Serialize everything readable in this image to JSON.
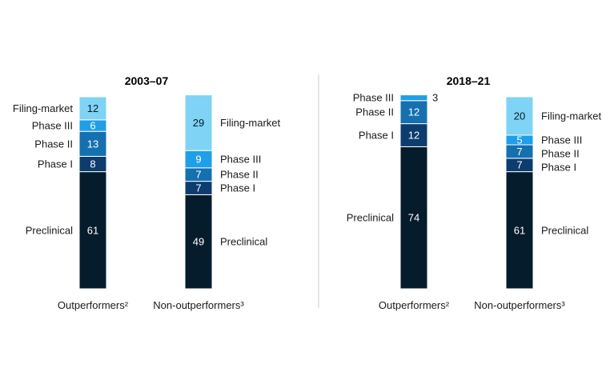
{
  "colors": {
    "Preclinical": "#051c2c",
    "Phase I": "#0d3c6e",
    "Phase II": "#1570b0",
    "Phase III": "#1e9fe8",
    "Filing-market": "#7fd3f5",
    "divider": "#cccccc",
    "baseline": "#999999"
  },
  "chart_data": [
    {
      "type": "bar",
      "stacked": true,
      "title": "2003–07",
      "stages": [
        "Preclinical",
        "Phase I",
        "Phase II",
        "Phase III",
        "Filing-market"
      ],
      "categories": [
        "Outperformers²",
        "Non-outperformers³"
      ],
      "series": [
        {
          "name": "Preclinical",
          "values": [
            61,
            49
          ]
        },
        {
          "name": "Phase I",
          "values": [
            8,
            7
          ]
        },
        {
          "name": "Phase II",
          "values": [
            13,
            7
          ]
        },
        {
          "name": "Phase III",
          "values": [
            6,
            9
          ]
        },
        {
          "name": "Filing-market",
          "values": [
            12,
            29
          ]
        }
      ],
      "ylim": [
        0,
        100
      ]
    },
    {
      "type": "bar",
      "stacked": true,
      "title": "2018–21",
      "stages": [
        "Preclinical",
        "Phase I",
        "Phase II",
        "Phase III",
        "Filing-market"
      ],
      "categories": [
        "Outperformers²",
        "Non-outperformers³"
      ],
      "series": [
        {
          "name": "Preclinical",
          "values": [
            74,
            61
          ]
        },
        {
          "name": "Phase I",
          "values": [
            12,
            7
          ]
        },
        {
          "name": "Phase II",
          "values": [
            12,
            7
          ]
        },
        {
          "name": "Phase III",
          "values": [
            3,
            5
          ]
        },
        {
          "name": "Filing-market",
          "values": [
            0,
            20
          ]
        }
      ],
      "ylim": [
        0,
        100
      ]
    }
  ]
}
